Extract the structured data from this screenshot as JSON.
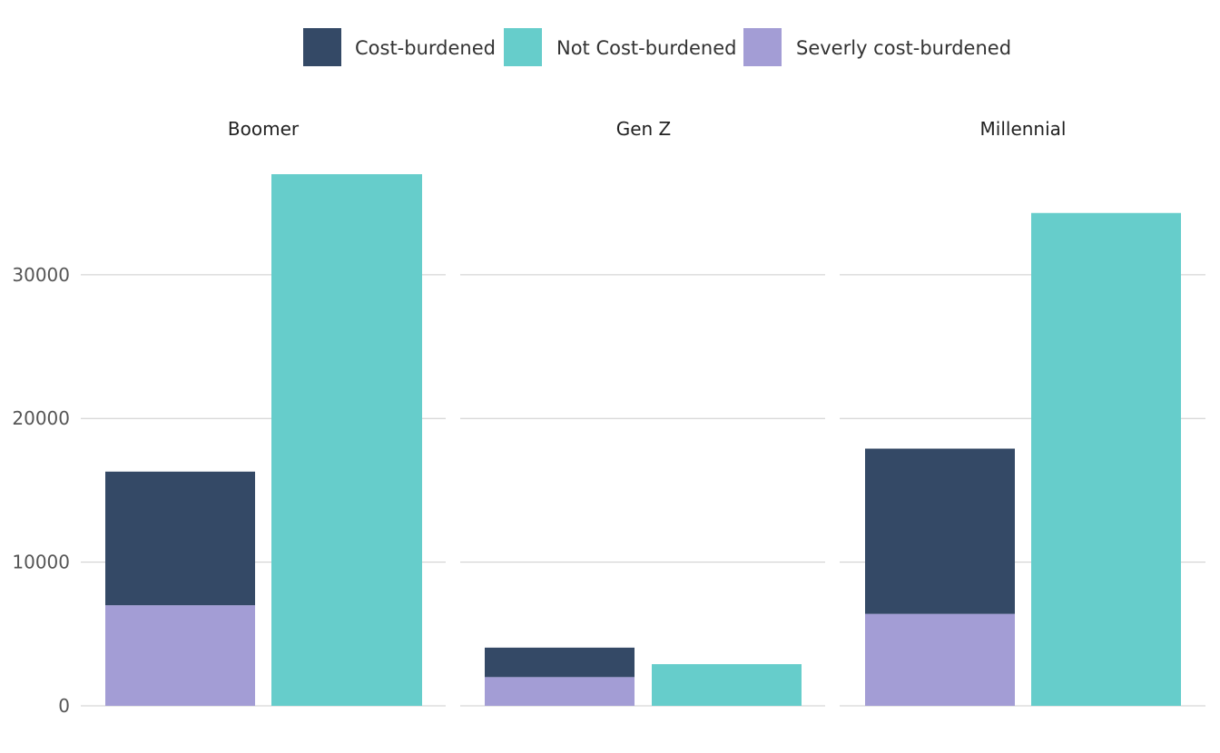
{
  "chart_data": {
    "type": "bar",
    "stacked": true,
    "facets": [
      "Boomer",
      "Gen Z",
      "Millennial"
    ],
    "categories": [
      "Cost-burdened",
      "Not Cost-burdened"
    ],
    "series": [
      {
        "name": "Severly cost-burdened",
        "color": "#a39dd5",
        "values": {
          "Boomer": [
            7000,
            0
          ],
          "Gen Z": [
            2000,
            0
          ],
          "Millennial": [
            6400,
            0
          ]
        }
      },
      {
        "name": "Cost-burdened",
        "color": "#344966",
        "values": {
          "Boomer": [
            9300,
            0
          ],
          "Gen Z": [
            2050,
            0
          ],
          "Millennial": [
            11500,
            0
          ]
        }
      },
      {
        "name": "Not Cost-burdened",
        "color": "#66cdcb",
        "values": {
          "Boomer": [
            0,
            37000
          ],
          "Gen Z": [
            0,
            2900
          ],
          "Millennial": [
            0,
            34300
          ]
        }
      }
    ],
    "legend": {
      "placement": "top",
      "entries": [
        {
          "label": "Cost-burdened",
          "color": "#344966"
        },
        {
          "label": "Not Cost-burdened",
          "color": "#66cdcb"
        },
        {
          "label": "Severly cost-burdened",
          "color": "#a39dd5"
        }
      ]
    },
    "y_ticks": [
      "0",
      "10000",
      "20000",
      "30000"
    ],
    "y_tick_values": [
      0,
      10000,
      20000,
      30000
    ],
    "ylim": [
      0,
      37000
    ],
    "grid": true,
    "xlabel": "",
    "ylabel": "",
    "title": ""
  }
}
